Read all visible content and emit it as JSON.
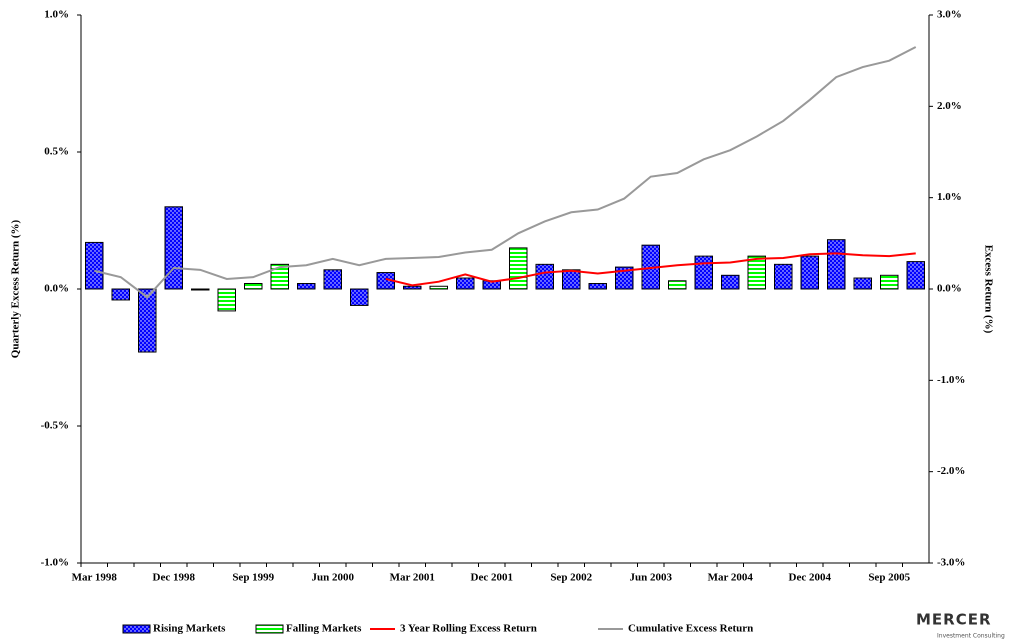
{
  "chart_data": {
    "type": "bar",
    "categories": [
      "Mar 1998",
      null,
      null,
      "Dec 1998",
      null,
      null,
      "Sep 1999",
      null,
      null,
      "Jun 2000",
      null,
      null,
      "Mar 2001",
      null,
      null,
      "Dec 2001",
      null,
      null,
      "Sep 2002",
      null,
      null,
      "Jun 2003",
      null,
      null,
      "Mar 2004",
      null,
      null,
      "Dec 2004",
      null,
      null,
      "Sep 2005",
      null
    ],
    "series": [
      {
        "name": "Rising Markets",
        "color": "#0000ff",
        "pattern": "dots",
        "values": [
          0.17,
          -0.04,
          -0.23,
          0.3,
          -0.003,
          null,
          null,
          null,
          0.02,
          0.07,
          -0.06,
          0.06,
          0.01,
          null,
          0.04,
          0.03,
          null,
          0.09,
          0.07,
          0.02,
          0.08,
          0.16,
          null,
          0.12,
          0.05,
          null,
          0.09,
          0.12,
          0.18,
          0.04,
          null,
          0.1
        ]
      },
      {
        "name": "Falling Markets",
        "color": "#00ff00",
        "pattern": "stripes",
        "values": [
          null,
          null,
          null,
          null,
          null,
          -0.08,
          0.02,
          0.09,
          null,
          null,
          null,
          null,
          null,
          0.01,
          null,
          null,
          0.15,
          null,
          null,
          null,
          null,
          null,
          0.03,
          null,
          null,
          0.12,
          null,
          null,
          null,
          null,
          0.05,
          null
        ]
      },
      {
        "name": "3 Year Rolling Excess Return",
        "color": "#ff0000",
        "type": "line",
        "axis": "y2",
        "values": [
          null,
          null,
          null,
          null,
          null,
          null,
          null,
          null,
          null,
          null,
          null,
          0.11,
          0.04,
          0.08,
          0.16,
          0.08,
          0.12,
          0.18,
          0.2,
          0.17,
          0.2,
          0.23,
          0.26,
          0.28,
          0.29,
          0.33,
          0.34,
          0.38,
          0.39,
          0.37,
          0.36,
          0.39
        ]
      },
      {
        "name": "Cumulative Excess Return",
        "color": "#999999",
        "type": "line",
        "axis": "y2",
        "values": [
          0.2,
          0.13,
          -0.09,
          0.23,
          0.21,
          0.11,
          0.13,
          0.24,
          0.26,
          0.33,
          0.26,
          0.33,
          0.34,
          0.35,
          0.4,
          0.43,
          0.61,
          0.74,
          0.84,
          0.87,
          0.99,
          1.23,
          1.27,
          1.42,
          1.52,
          1.67,
          1.84,
          2.07,
          2.32,
          2.43,
          2.5,
          2.65
        ]
      }
    ],
    "y_label": "Quarterly Excess Return (%)",
    "y2_label": "Excess Return (%)",
    "ylim": [
      -1,
      1
    ],
    "yticks": [
      {
        "value": -1,
        "label": "-1.0%"
      },
      {
        "value": -0.5,
        "label": "-0.5%"
      },
      {
        "value": 0,
        "label": "0.0%"
      },
      {
        "value": 0.5,
        "label": "0.5%"
      },
      {
        "value": 1,
        "label": "1.0%"
      }
    ],
    "y2lim": [
      -3,
      3
    ],
    "y2ticks": [
      {
        "value": -3,
        "label": "-3.0%"
      },
      {
        "value": -2,
        "label": "-2.0%"
      },
      {
        "value": -1,
        "label": "-1.0%"
      },
      {
        "value": 0,
        "label": "0.0%"
      },
      {
        "value": 1,
        "label": "1.0%"
      },
      {
        "value": 2,
        "label": "2.0%"
      },
      {
        "value": 3,
        "label": "3.0%"
      }
    ],
    "grid": false,
    "legend": "bottom"
  },
  "logo": {
    "name": "MERCER",
    "tagline": "Investment Consulting"
  }
}
